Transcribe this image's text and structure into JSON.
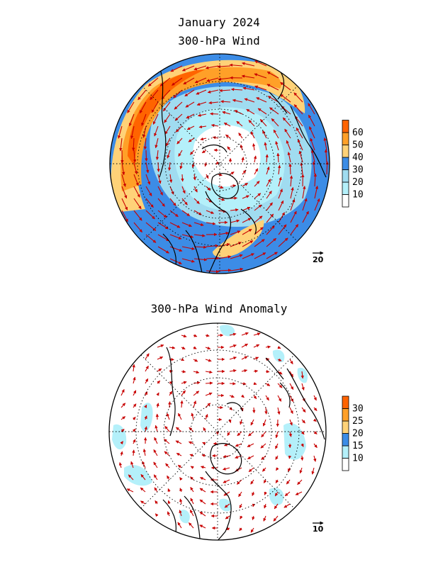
{
  "figure": {
    "title_line1": "January 2024",
    "title_line2": "300-hPa Wind",
    "title_anomaly": "300-hPa Wind Anomaly"
  },
  "top_panel": {
    "colorbar_levels": [
      "10",
      "20",
      "30",
      "40",
      "50",
      "60"
    ],
    "colorbar_colors": [
      "#ffffff",
      "#b4f0fa",
      "#a0dcf0",
      "#3c8ce6",
      "#ffd278",
      "#ffa028",
      "#ff6400"
    ],
    "reference_vector": "20"
  },
  "bottom_panel": {
    "colorbar_levels": [
      "10",
      "15",
      "20",
      "25",
      "30"
    ],
    "colorbar_colors": [
      "#ffffff",
      "#b4f0fa",
      "#3c8ce6",
      "#ffd278",
      "#ffa028",
      "#ff6400"
    ],
    "reference_vector": "10"
  },
  "colors": {
    "vector": "#c80000",
    "coast": "#000000",
    "grid": "#000000"
  }
}
